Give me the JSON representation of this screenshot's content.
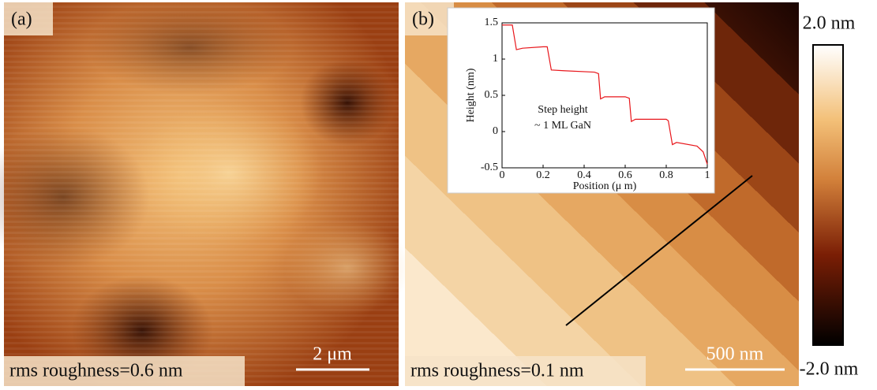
{
  "panels": [
    {
      "label": "(a)",
      "rms": "rms roughness=0.6 nm",
      "scale_bar": "2 μm"
    },
    {
      "label": "(b)",
      "rms": "rms roughness=0.1 nm",
      "scale_bar": "500 nm"
    }
  ],
  "colorbar": {
    "max": "2.0 nm",
    "min": "-2.0 nm"
  },
  "chart_data": {
    "type": "line",
    "xlabel": "Position (μ m)",
    "ylabel": "Height (nm)",
    "annotations": [
      "Step height",
      "~ 1 ML GaN"
    ],
    "x": [
      0,
      0.05,
      0.07,
      0.1,
      0.2,
      0.22,
      0.24,
      0.3,
      0.45,
      0.47,
      0.48,
      0.5,
      0.6,
      0.62,
      0.63,
      0.65,
      0.8,
      0.81,
      0.83,
      0.85,
      0.95,
      0.98,
      1
    ],
    "series": [
      {
        "color": "#e8161b",
        "values": [
          1.47,
          1.47,
          1.13,
          1.15,
          1.17,
          1.17,
          0.85,
          0.84,
          0.82,
          0.8,
          0.45,
          0.48,
          0.48,
          0.46,
          0.14,
          0.17,
          0.17,
          0.15,
          -0.18,
          -0.15,
          -0.2,
          -0.28,
          -0.45
        ]
      }
    ],
    "xlim": [
      0,
      1
    ],
    "ylim": [
      -0.5,
      1.5
    ],
    "xticks": [
      0,
      0.2,
      0.4,
      0.6,
      0.8,
      1
    ],
    "yticks": [
      -0.5,
      0,
      0.5,
      1,
      1.5
    ]
  }
}
